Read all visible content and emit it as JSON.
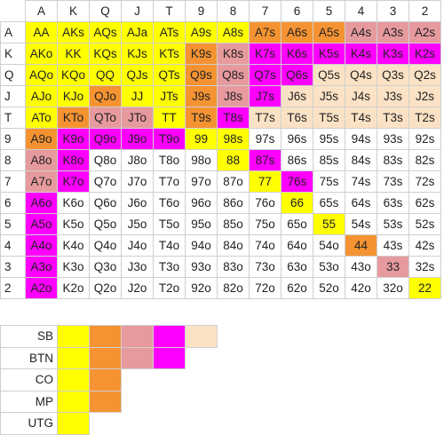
{
  "colors": {
    "yellow": "#ffff00",
    "orange": "#f59332",
    "pink": "#e79a9e",
    "magenta": "#ff00ff",
    "peach": "#fbe2c5",
    "white": "#ffffff"
  },
  "ranks": [
    "A",
    "K",
    "Q",
    "J",
    "T",
    "9",
    "8",
    "7",
    "6",
    "5",
    "4",
    "3",
    "2"
  ],
  "grid": [
    {
      "rank": "A",
      "cells": [
        {
          "t": "AA",
          "c": "yellow"
        },
        {
          "t": "AKs",
          "c": "yellow"
        },
        {
          "t": "AQs",
          "c": "yellow"
        },
        {
          "t": "AJa",
          "c": "yellow"
        },
        {
          "t": "ATs",
          "c": "yellow"
        },
        {
          "t": "A9s",
          "c": "yellow"
        },
        {
          "t": "A8s",
          "c": "yellow"
        },
        {
          "t": "A7s",
          "c": "orange"
        },
        {
          "t": "A6s",
          "c": "orange"
        },
        {
          "t": "A5s",
          "c": "orange"
        },
        {
          "t": "A4s",
          "c": "pink"
        },
        {
          "t": "A3s",
          "c": "pink"
        },
        {
          "t": "A2s",
          "c": "pink"
        }
      ]
    },
    {
      "rank": "K",
      "cells": [
        {
          "t": "AKo",
          "c": "yellow"
        },
        {
          "t": "KK",
          "c": "yellow"
        },
        {
          "t": "KQs",
          "c": "yellow"
        },
        {
          "t": "KJs",
          "c": "yellow"
        },
        {
          "t": "KTs",
          "c": "yellow"
        },
        {
          "t": "K9s",
          "c": "orange"
        },
        {
          "t": "K8s",
          "c": "pink"
        },
        {
          "t": "K7s",
          "c": "magenta"
        },
        {
          "t": "K6s",
          "c": "magenta"
        },
        {
          "t": "K5s",
          "c": "magenta"
        },
        {
          "t": "K4s",
          "c": "magenta"
        },
        {
          "t": "K3s",
          "c": "magenta"
        },
        {
          "t": "K2s",
          "c": "magenta"
        }
      ]
    },
    {
      "rank": "Q",
      "cells": [
        {
          "t": "AQo",
          "c": "yellow"
        },
        {
          "t": "KQo",
          "c": "yellow"
        },
        {
          "t": "QQ",
          "c": "yellow"
        },
        {
          "t": "QJs",
          "c": "yellow"
        },
        {
          "t": "QTs",
          "c": "yellow"
        },
        {
          "t": "Q9s",
          "c": "orange"
        },
        {
          "t": "Q8s",
          "c": "pink"
        },
        {
          "t": "Q7s",
          "c": "magenta"
        },
        {
          "t": "Q6s",
          "c": "magenta"
        },
        {
          "t": "Q5s",
          "c": "peach"
        },
        {
          "t": "Q4s",
          "c": "peach"
        },
        {
          "t": "Q3s",
          "c": "peach"
        },
        {
          "t": "Q2s",
          "c": "peach"
        }
      ]
    },
    {
      "rank": "J",
      "cells": [
        {
          "t": "AJo",
          "c": "yellow"
        },
        {
          "t": "KJo",
          "c": "yellow"
        },
        {
          "t": "QJo",
          "c": "orange"
        },
        {
          "t": "JJ",
          "c": "yellow"
        },
        {
          "t": "JTs",
          "c": "yellow"
        },
        {
          "t": "J9s",
          "c": "orange"
        },
        {
          "t": "J8s",
          "c": "pink"
        },
        {
          "t": "J7s",
          "c": "magenta"
        },
        {
          "t": "J6s",
          "c": "peach"
        },
        {
          "t": "J5s",
          "c": "peach"
        },
        {
          "t": "J4s",
          "c": "peach"
        },
        {
          "t": "J3s",
          "c": "peach"
        },
        {
          "t": "J2s",
          "c": "peach"
        }
      ]
    },
    {
      "rank": "T",
      "cells": [
        {
          "t": "ATo",
          "c": "yellow"
        },
        {
          "t": "KTo",
          "c": "orange"
        },
        {
          "t": "QTo",
          "c": "pink"
        },
        {
          "t": "JTo",
          "c": "pink"
        },
        {
          "t": "TT",
          "c": "yellow"
        },
        {
          "t": "T9s",
          "c": "orange"
        },
        {
          "t": "T8s",
          "c": "magenta"
        },
        {
          "t": "T7s",
          "c": "peach"
        },
        {
          "t": "T6s",
          "c": "peach"
        },
        {
          "t": "T5s",
          "c": "peach"
        },
        {
          "t": "T4s",
          "c": "peach"
        },
        {
          "t": "T3s",
          "c": "peach"
        },
        {
          "t": "T2s",
          "c": "peach"
        }
      ]
    },
    {
      "rank": "9",
      "cells": [
        {
          "t": "A9o",
          "c": "orange"
        },
        {
          "t": "K9o",
          "c": "magenta"
        },
        {
          "t": "Q9o",
          "c": "magenta"
        },
        {
          "t": "J9o",
          "c": "magenta"
        },
        {
          "t": "T9o",
          "c": "magenta"
        },
        {
          "t": "99",
          "c": "yellow"
        },
        {
          "t": "98s",
          "c": "yellow"
        },
        {
          "t": "97s",
          "c": "white"
        },
        {
          "t": "96s",
          "c": "white"
        },
        {
          "t": "95s",
          "c": "white"
        },
        {
          "t": "94s",
          "c": "white"
        },
        {
          "t": "93s",
          "c": "white"
        },
        {
          "t": "92s",
          "c": "white"
        }
      ]
    },
    {
      "rank": "8",
      "cells": [
        {
          "t": "A8o",
          "c": "pink"
        },
        {
          "t": "K8o",
          "c": "magenta"
        },
        {
          "t": "Q8o",
          "c": "white"
        },
        {
          "t": "J8o",
          "c": "white"
        },
        {
          "t": "T8o",
          "c": "white"
        },
        {
          "t": "98o",
          "c": "white"
        },
        {
          "t": "88",
          "c": "yellow"
        },
        {
          "t": "87s",
          "c": "magenta"
        },
        {
          "t": "86s",
          "c": "white"
        },
        {
          "t": "85s",
          "c": "white"
        },
        {
          "t": "84s",
          "c": "white"
        },
        {
          "t": "83s",
          "c": "white"
        },
        {
          "t": "82s",
          "c": "white"
        }
      ]
    },
    {
      "rank": "7",
      "cells": [
        {
          "t": "A7o",
          "c": "pink"
        },
        {
          "t": "K7o",
          "c": "magenta"
        },
        {
          "t": "Q7o",
          "c": "white"
        },
        {
          "t": "J7o",
          "c": "white"
        },
        {
          "t": "T7o",
          "c": "white"
        },
        {
          "t": "97o",
          "c": "white"
        },
        {
          "t": "87o",
          "c": "white"
        },
        {
          "t": "77",
          "c": "yellow"
        },
        {
          "t": "76s",
          "c": "magenta"
        },
        {
          "t": "75s",
          "c": "white"
        },
        {
          "t": "74s",
          "c": "white"
        },
        {
          "t": "73s",
          "c": "white"
        },
        {
          "t": "72s",
          "c": "white"
        }
      ]
    },
    {
      "rank": "6",
      "cells": [
        {
          "t": "A6o",
          "c": "magenta"
        },
        {
          "t": "K6o",
          "c": "white"
        },
        {
          "t": "Q6o",
          "c": "white"
        },
        {
          "t": "J6o",
          "c": "white"
        },
        {
          "t": "T6o",
          "c": "white"
        },
        {
          "t": "96o",
          "c": "white"
        },
        {
          "t": "86o",
          "c": "white"
        },
        {
          "t": "76o",
          "c": "white"
        },
        {
          "t": "66",
          "c": "yellow"
        },
        {
          "t": "65s",
          "c": "white"
        },
        {
          "t": "64s",
          "c": "white"
        },
        {
          "t": "63s",
          "c": "white"
        },
        {
          "t": "62s",
          "c": "white"
        }
      ]
    },
    {
      "rank": "5",
      "cells": [
        {
          "t": "A5o",
          "c": "magenta"
        },
        {
          "t": "K5o",
          "c": "white"
        },
        {
          "t": "Q5o",
          "c": "white"
        },
        {
          "t": "J5o",
          "c": "white"
        },
        {
          "t": "T5o",
          "c": "white"
        },
        {
          "t": "95o",
          "c": "white"
        },
        {
          "t": "85o",
          "c": "white"
        },
        {
          "t": "75o",
          "c": "white"
        },
        {
          "t": "65o",
          "c": "white"
        },
        {
          "t": "55",
          "c": "yellow"
        },
        {
          "t": "54s",
          "c": "white"
        },
        {
          "t": "53s",
          "c": "white"
        },
        {
          "t": "52s",
          "c": "white"
        }
      ]
    },
    {
      "rank": "4",
      "cells": [
        {
          "t": "A4o",
          "c": "magenta"
        },
        {
          "t": "K4o",
          "c": "white"
        },
        {
          "t": "Q4o",
          "c": "white"
        },
        {
          "t": "J4o",
          "c": "white"
        },
        {
          "t": "T4o",
          "c": "white"
        },
        {
          "t": "94o",
          "c": "white"
        },
        {
          "t": "84o",
          "c": "white"
        },
        {
          "t": "74o",
          "c": "white"
        },
        {
          "t": "64o",
          "c": "white"
        },
        {
          "t": "54o",
          "c": "white"
        },
        {
          "t": "44",
          "c": "orange"
        },
        {
          "t": "43s",
          "c": "white"
        },
        {
          "t": "42s",
          "c": "white"
        }
      ]
    },
    {
      "rank": "3",
      "cells": [
        {
          "t": "A3o",
          "c": "magenta"
        },
        {
          "t": "K3o",
          "c": "white"
        },
        {
          "t": "Q3o",
          "c": "white"
        },
        {
          "t": "J3o",
          "c": "white"
        },
        {
          "t": "T3o",
          "c": "white"
        },
        {
          "t": "93o",
          "c": "white"
        },
        {
          "t": "83o",
          "c": "white"
        },
        {
          "t": "73o",
          "c": "white"
        },
        {
          "t": "63o",
          "c": "white"
        },
        {
          "t": "53o",
          "c": "white"
        },
        {
          "t": "43o",
          "c": "white"
        },
        {
          "t": "33",
          "c": "pink"
        },
        {
          "t": "32s",
          "c": "white"
        }
      ]
    },
    {
      "rank": "2",
      "cells": [
        {
          "t": "A2o",
          "c": "magenta"
        },
        {
          "t": "K2o",
          "c": "white"
        },
        {
          "t": "Q2o",
          "c": "white"
        },
        {
          "t": "J2o",
          "c": "white"
        },
        {
          "t": "T2o",
          "c": "white"
        },
        {
          "t": "92o",
          "c": "white"
        },
        {
          "t": "82o",
          "c": "white"
        },
        {
          "t": "72o",
          "c": "white"
        },
        {
          "t": "62o",
          "c": "white"
        },
        {
          "t": "52o",
          "c": "white"
        },
        {
          "t": "42o",
          "c": "white"
        },
        {
          "t": "32o",
          "c": "white"
        },
        {
          "t": "22",
          "c": "yellow"
        }
      ]
    }
  ],
  "legend": [
    {
      "label": "SB",
      "swatches": [
        "yellow",
        "orange",
        "pink",
        "magenta",
        "peach"
      ]
    },
    {
      "label": "BTN",
      "swatches": [
        "yellow",
        "orange",
        "pink",
        "magenta"
      ]
    },
    {
      "label": "CO",
      "swatches": [
        "yellow",
        "orange"
      ]
    },
    {
      "label": "MP",
      "swatches": [
        "yellow",
        "orange"
      ]
    },
    {
      "label": "UTG",
      "swatches": [
        "yellow"
      ]
    }
  ]
}
